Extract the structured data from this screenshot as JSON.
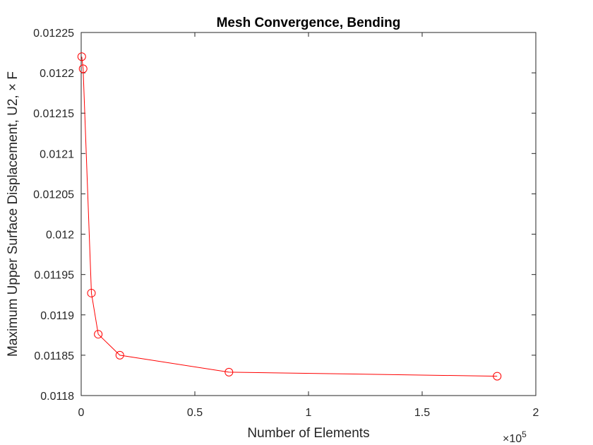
{
  "chart_data": {
    "type": "line",
    "title": "Mesh Convergence, Bending",
    "xlabel": "Number of Elements",
    "ylabel": "Maximum Upper Surface Displacement, U2, × F",
    "x_multiplier_label": "×10",
    "x_multiplier_exponent": "5",
    "xlim": [
      0,
      200000
    ],
    "ylim": [
      0.0118,
      0.01225
    ],
    "xticks": [
      0,
      50000,
      100000,
      150000,
      200000
    ],
    "xtick_labels": [
      "0",
      "0.5",
      "1",
      "1.5",
      "2"
    ],
    "yticks": [
      0.0118,
      0.01185,
      0.0119,
      0.01195,
      0.012,
      0.01205,
      0.0121,
      0.01215,
      0.0122,
      0.01225
    ],
    "ytick_labels": [
      "0.0118",
      "0.01185",
      "0.0119",
      "0.01195",
      "0.012",
      "0.01205",
      "0.0121",
      "0.01215",
      "0.0122",
      "0.01225"
    ],
    "grid": false,
    "marker": "circle",
    "series": [
      {
        "color": "#ff0000",
        "x": [
          250,
          850,
          4500,
          7500,
          17000,
          65000,
          183000
        ],
        "y": [
          0.01222,
          0.012205,
          0.011927,
          0.011876,
          0.01185,
          0.011829,
          0.011824
        ]
      }
    ]
  }
}
